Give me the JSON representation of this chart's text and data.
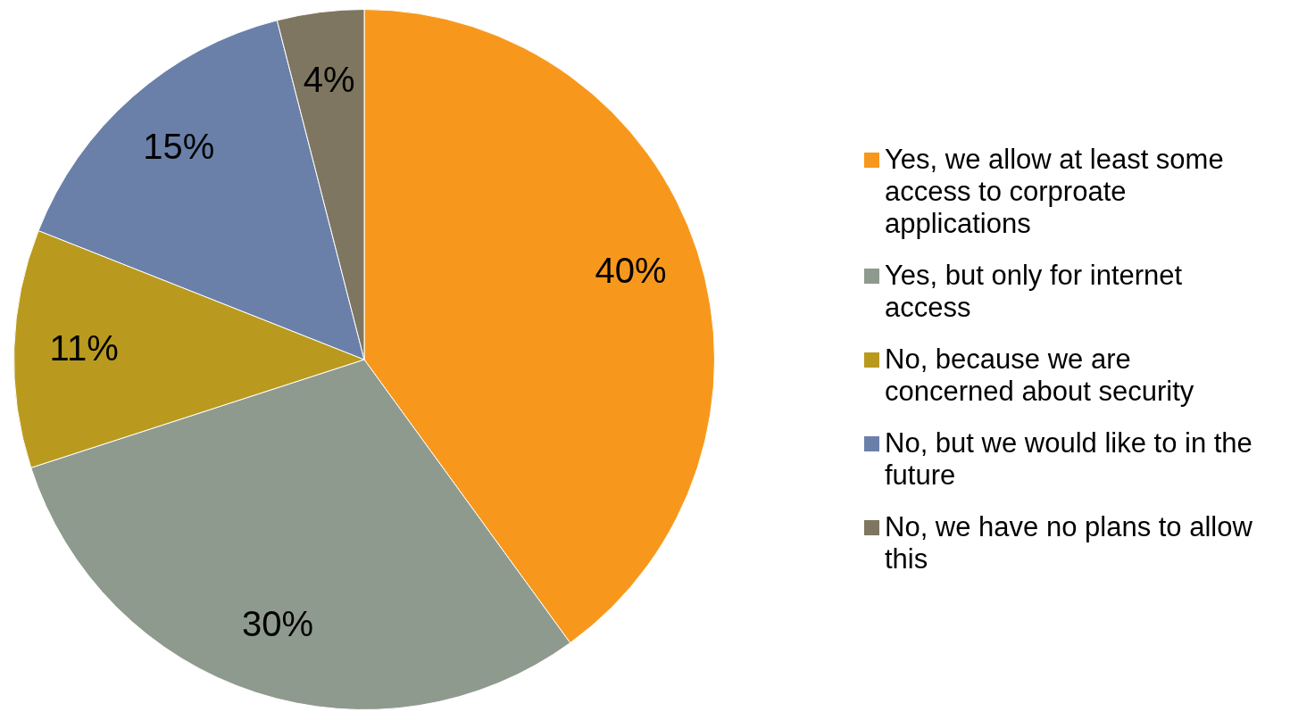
{
  "chart_data": {
    "type": "pie",
    "categories": [
      "Yes, we allow at least some access to corproate applications",
      "Yes, but only for internet access",
      "No, because we are concerned about security",
      "No, but we would like to in the future",
      "No, we have no plans to allow this"
    ],
    "values": [
      40,
      30,
      11,
      15,
      4
    ],
    "colors": [
      "#f7981d",
      "#8f9a8e",
      "#b99a1e",
      "#6a80a9",
      "#7e7660"
    ],
    "value_labels": [
      "40%",
      "30%",
      "11%",
      "15%",
      "4%"
    ],
    "legend": "right"
  }
}
